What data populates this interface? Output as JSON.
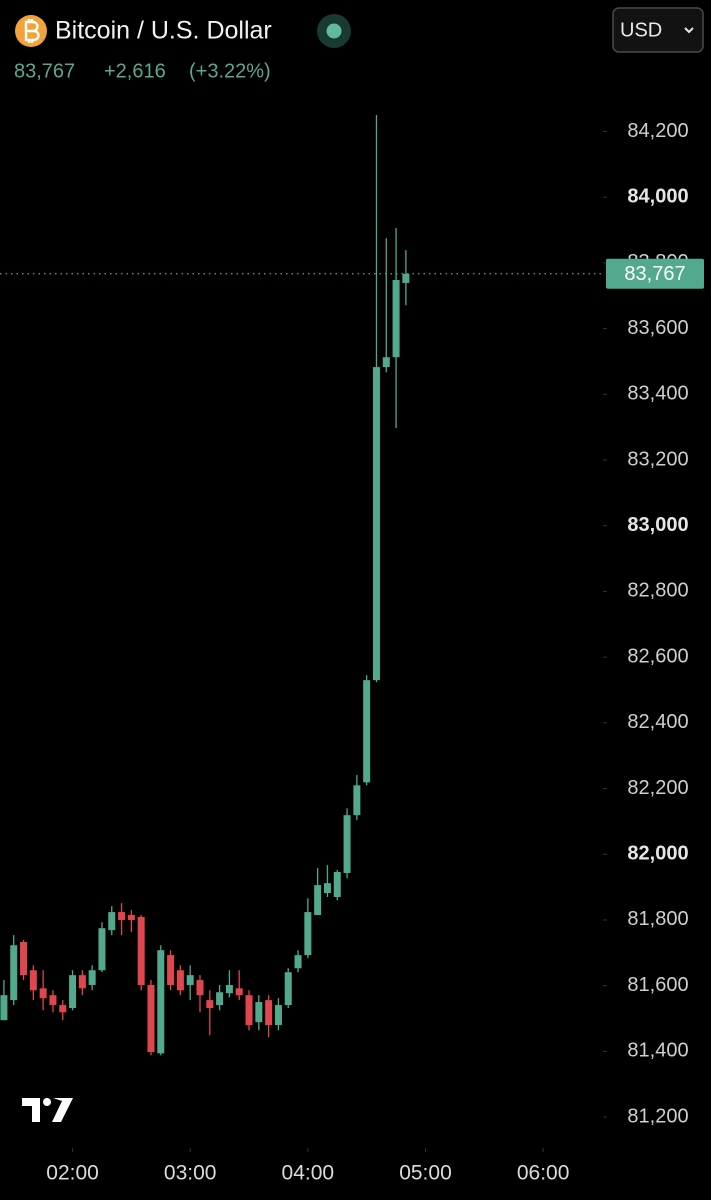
{
  "header": {
    "title": "Bitcoin / U.S. Dollar",
    "change": "+2,616",
    "change_pct": "(+3.22%)",
    "currency": "USD"
  },
  "chart_data": {
    "type": "candlestick",
    "up_color": "#52a98e",
    "down_color": "#e0464e",
    "last_price": {
      "value": 83767,
      "label": "83,767"
    },
    "x": [
      "01:25",
      "01:30",
      "01:35",
      "01:40",
      "01:45",
      "01:50",
      "01:55",
      "02:00",
      "02:05",
      "02:10",
      "02:15",
      "02:20",
      "02:25",
      "02:30",
      "02:35",
      "02:40",
      "02:45",
      "02:50",
      "02:55",
      "03:00",
      "03:05",
      "03:10",
      "03:15",
      "03:20",
      "03:25",
      "03:30",
      "03:35",
      "03:40",
      "03:45",
      "03:50",
      "03:55",
      "04:00",
      "04:05",
      "04:10",
      "04:15",
      "04:20",
      "04:25",
      "04:30",
      "04:35",
      "04:40",
      "04:45",
      "04:50"
    ],
    "open": [
      81495,
      81556,
      81733,
      81647,
      81592,
      81571,
      81541,
      81532,
      81632,
      81602,
      81647,
      81769,
      81824,
      81815,
      81809,
      81602,
      81394,
      81693,
      81647,
      81602,
      81617,
      81556,
      81541,
      81577,
      81592,
      81571,
      81489,
      81556,
      81480,
      81541,
      81653,
      81693,
      81815,
      81882,
      81870,
      81943,
      82119,
      82219,
      82530,
      83483,
      83513,
      83739
    ],
    "high": [
      81617,
      81754,
      81739,
      81662,
      81647,
      81586,
      81556,
      81647,
      81647,
      81662,
      81793,
      81842,
      81851,
      81830,
      81815,
      81617,
      81723,
      81708,
      81662,
      81662,
      81632,
      81586,
      81602,
      81647,
      81647,
      81586,
      81571,
      81571,
      81562,
      81653,
      81708,
      81866,
      81958,
      81967,
      81952,
      82140,
      82241,
      82545,
      84250,
      83875,
      83906,
      83839
    ],
    "low": [
      81495,
      81541,
      81617,
      81556,
      81525,
      81519,
      81495,
      81525,
      81571,
      81586,
      81641,
      81754,
      81754,
      81763,
      81586,
      81388,
      81388,
      81586,
      81571,
      81556,
      81519,
      81449,
      81525,
      81565,
      81556,
      81464,
      81464,
      81443,
      81464,
      81532,
      81641,
      81684,
      81815,
      81870,
      81860,
      81927,
      82104,
      82210,
      82524,
      83467,
      83297,
      83671
    ],
    "close": [
      81571,
      81723,
      81632,
      81586,
      81562,
      81541,
      81519,
      81632,
      81592,
      81647,
      81775,
      81824,
      81800,
      81800,
      81602,
      81398,
      81708,
      81602,
      81586,
      81632,
      81571,
      81532,
      81580,
      81602,
      81571,
      81480,
      81550,
      81480,
      81541,
      81641,
      81693,
      81824,
      81906,
      81912,
      81946,
      82119,
      82210,
      82530,
      83483,
      83513,
      83748,
      83767
    ],
    "xlim": [
      "01:23",
      "06:29"
    ],
    "xticks": [
      "02:00",
      "03:00",
      "04:00",
      "05:00",
      "06:00"
    ],
    "ylim": [
      81115,
      84296
    ],
    "yticks": [
      {
        "value": 81200,
        "label": "81,200"
      },
      {
        "value": 81400,
        "label": "81,400"
      },
      {
        "value": 81600,
        "label": "81,600"
      },
      {
        "value": 81800,
        "label": "81,800"
      },
      {
        "value": 82000,
        "label": "82,000"
      },
      {
        "value": 82200,
        "label": "82,200"
      },
      {
        "value": 82400,
        "label": "82,400"
      },
      {
        "value": 82600,
        "label": "82,600"
      },
      {
        "value": 82800,
        "label": "82,800"
      },
      {
        "value": 83000,
        "label": "83,000"
      },
      {
        "value": 83200,
        "label": "83,200"
      },
      {
        "value": 83400,
        "label": "83,400"
      },
      {
        "value": 83600,
        "label": "83,600"
      },
      {
        "value": 83800,
        "label": "83,800"
      },
      {
        "value": 84000,
        "label": "84,000"
      },
      {
        "value": 84200,
        "label": "84,200"
      }
    ]
  }
}
